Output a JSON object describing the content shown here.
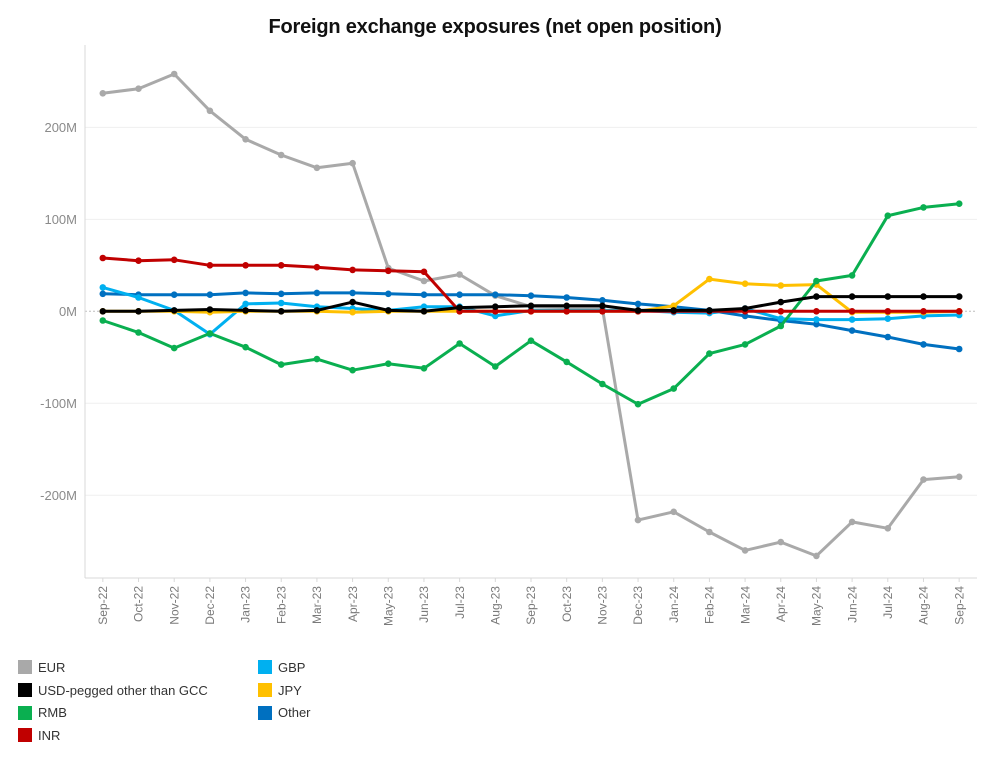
{
  "chart_data": {
    "type": "line",
    "title": "Foreign exchange exposures (net open position)",
    "xlabel": "",
    "ylabel": "",
    "categories": [
      "Sep-22",
      "Oct-22",
      "Nov-22",
      "Dec-22",
      "Jan-23",
      "Feb-23",
      "Mar-23",
      "Apr-23",
      "May-23",
      "Jun-23",
      "Jul-23",
      "Aug-23",
      "Sep-23",
      "Oct-23",
      "Nov-23",
      "Dec-23",
      "Jan-24",
      "Feb-24",
      "Mar-24",
      "Apr-24",
      "May-24",
      "Jun-24",
      "Jul-24",
      "Aug-24",
      "Sep-24"
    ],
    "y_ticks": [
      {
        "value": 200,
        "label": "200M"
      },
      {
        "value": 100,
        "label": "100M"
      },
      {
        "value": 0,
        "label": "0M"
      },
      {
        "value": -100,
        "label": "-100M"
      },
      {
        "value": -200,
        "label": "-200M"
      }
    ],
    "ylim": [
      -290,
      295
    ],
    "grid": true,
    "legend_position": "bottom-left",
    "series": [
      {
        "name": "EUR",
        "color": "#a9a9a9",
        "values": [
          237,
          242,
          258,
          218,
          187,
          170,
          156,
          161,
          47,
          33,
          40,
          17,
          5,
          4,
          3,
          -227,
          -218,
          -240,
          -260,
          -251,
          -266,
          -229,
          -236,
          -183,
          -180
        ]
      },
      {
        "name": "USD-pegged other than GCC",
        "color": "#000000",
        "values": [
          0,
          0,
          1,
          2,
          1,
          0,
          1,
          10,
          1,
          0,
          4,
          5,
          6,
          6,
          6,
          1,
          1,
          1,
          3,
          10,
          16,
          16,
          16,
          16,
          16
        ]
      },
      {
        "name": "RMB",
        "color": "#0aaf50",
        "values": [
          -10,
          -23,
          -40,
          -24,
          -39,
          -58,
          -52,
          -64,
          -57,
          -62,
          -35,
          -60,
          -32,
          -55,
          -79,
          -101,
          -84,
          -46,
          -36,
          -16,
          33,
          39,
          104,
          113,
          117
        ]
      },
      {
        "name": "INR",
        "color": "#c00000",
        "values": [
          58,
          55,
          56,
          50,
          50,
          50,
          48,
          45,
          44,
          43,
          0,
          0,
          0,
          0,
          0,
          0,
          0,
          0,
          0,
          0,
          0,
          0,
          0,
          0,
          0
        ]
      },
      {
        "name": "GBP",
        "color": "#00b0f0",
        "values": [
          26,
          15,
          1,
          -25,
          8,
          9,
          5,
          3,
          1,
          5,
          5,
          -5,
          1,
          1,
          1,
          1,
          -1,
          -2,
          3,
          -8,
          -9,
          -9,
          -8,
          -5,
          -4
        ]
      },
      {
        "name": "JPY",
        "color": "#ffc000",
        "values": [
          0,
          0,
          0,
          -1,
          0,
          0,
          0,
          -1,
          0,
          0,
          0,
          0,
          0,
          0,
          0,
          0,
          6,
          35,
          30,
          28,
          29,
          -1,
          -1,
          -1,
          0
        ]
      },
      {
        "name": "Other",
        "color": "#0070c0",
        "values": [
          19,
          18,
          18,
          18,
          20,
          19,
          20,
          20,
          19,
          18,
          18,
          18,
          17,
          15,
          12,
          8,
          5,
          1,
          -5,
          -10,
          -14,
          -21,
          -28,
          -36,
          -41
        ]
      }
    ]
  }
}
